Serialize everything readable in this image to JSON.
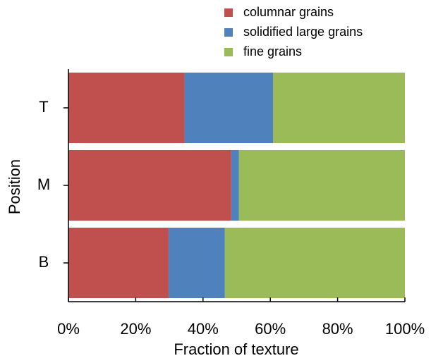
{
  "chart_data": {
    "type": "stacked-barh",
    "categories": [
      "T",
      "M",
      "B"
    ],
    "series": [
      {
        "name": "columnar grains",
        "color": "#c0504d",
        "values": [
          34.5,
          48.4,
          29.8
        ]
      },
      {
        "name": "solidified large grains",
        "color": "#4f81bd",
        "values": [
          26.3,
          2.3,
          16.7
        ]
      },
      {
        "name": "fine grains",
        "color": "#9bbb59",
        "values": [
          39.2,
          49.3,
          53.5
        ]
      }
    ],
    "xlim": [
      0,
      100
    ],
    "xticks": [
      {
        "value": 0,
        "label": "0%"
      },
      {
        "value": 20,
        "label": "20%"
      },
      {
        "value": 40,
        "label": "40%"
      },
      {
        "value": 60,
        "label": "60%"
      },
      {
        "value": 80,
        "label": "80%"
      },
      {
        "value": 100,
        "label": "100%"
      }
    ],
    "xlabel": "Fraction of texture",
    "ylabel": "Position",
    "legend": "top-right"
  }
}
